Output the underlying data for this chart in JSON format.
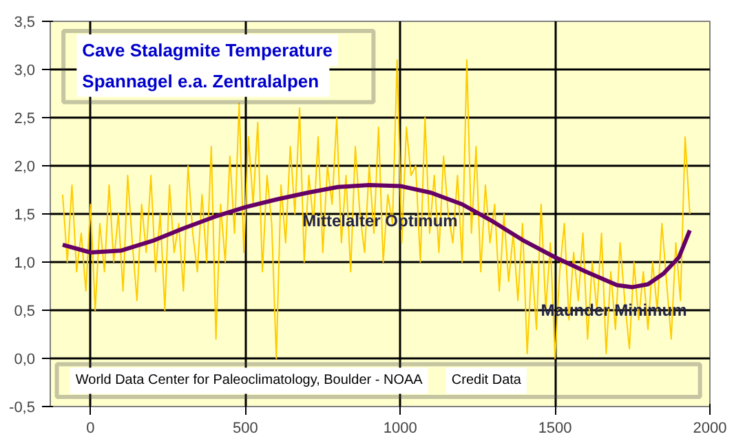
{
  "chart_data": {
    "type": "line",
    "title": "Cave Stalagmite Temperature",
    "subtitle": "Spannagel e.a.  Zentralalpen",
    "annotations": [
      {
        "text": "Mittelalter Optimum",
        "x": 935,
        "y": 1.43
      },
      {
        "text": "Maunder Minimum",
        "x": 1690,
        "y": 0.5
      },
      "World Data Center for Paleoclimatology, Boulder - NOAA",
      "Credit Data"
    ],
    "series": [
      {
        "color": "#ffcc00",
        "x": [
          -90,
          -75,
          -60,
          -45,
          -30,
          -15,
          0,
          15,
          30,
          45,
          60,
          75,
          90,
          105,
          120,
          135,
          150,
          165,
          180,
          195,
          210,
          225,
          240,
          255,
          270,
          285,
          300,
          315,
          330,
          345,
          360,
          375,
          390,
          405,
          420,
          435,
          450,
          465,
          480,
          495,
          510,
          525,
          540,
          555,
          570,
          585,
          600,
          615,
          630,
          645,
          660,
          675,
          690,
          705,
          720,
          735,
          750,
          765,
          780,
          795,
          810,
          825,
          840,
          855,
          870,
          885,
          900,
          915,
          930,
          945,
          960,
          975,
          990,
          1005,
          1020,
          1035,
          1050,
          1065,
          1080,
          1095,
          1110,
          1125,
          1140,
          1155,
          1170,
          1185,
          1200,
          1215,
          1230,
          1245,
          1260,
          1275,
          1290,
          1305,
          1320,
          1335,
          1350,
          1365,
          1380,
          1395,
          1410,
          1425,
          1440,
          1455,
          1470,
          1485,
          1500,
          1515,
          1530,
          1545,
          1560,
          1575,
          1590,
          1605,
          1620,
          1635,
          1650,
          1665,
          1680,
          1695,
          1710,
          1725,
          1740,
          1755,
          1770,
          1785,
          1800,
          1815,
          1830,
          1845,
          1860,
          1875,
          1890,
          1905,
          1920,
          1935
        ],
        "values": [
          1.7,
          1.0,
          1.8,
          0.9,
          1.3,
          0.7,
          1.6,
          0.5,
          1.4,
          0.9,
          1.8,
          1.0,
          1.5,
          0.7,
          1.9,
          1.2,
          0.6,
          1.6,
          1.1,
          1.9,
          0.9,
          1.5,
          0.5,
          1.8,
          1.1,
          1.4,
          0.7,
          2.0,
          1.3,
          0.9,
          1.7,
          1.0,
          2.2,
          0.2,
          1.6,
          1.0,
          2.1,
          1.3,
          2.65,
          1.1,
          2.3,
          1.6,
          2.45,
          0.9,
          1.9,
          1.4,
          0.0,
          1.8,
          1.2,
          2.2,
          1.5,
          2.6,
          1.0,
          1.9,
          1.4,
          2.3,
          1.1,
          2.0,
          1.6,
          2.5,
          1.2,
          1.9,
          0.9,
          2.2,
          1.5,
          1.1,
          2.0,
          1.3,
          2.4,
          1.0,
          1.7,
          1.4,
          3.1,
          1.2,
          2.4,
          1.9,
          2.0,
          1.0,
          2.5,
          1.3,
          1.9,
          1.1,
          2.1,
          1.5,
          1.2,
          1.9,
          1.0,
          3.1,
          1.3,
          2.2,
          0.9,
          1.8,
          1.2,
          1.6,
          0.7,
          1.5,
          0.8,
          1.3,
          0.6,
          1.4,
          0.05,
          1.0,
          0.3,
          1.6,
          0.5,
          1.2,
          0.0,
          0.9,
          1.4,
          0.4,
          1.1,
          0.6,
          1.3,
          0.2,
          1.0,
          0.5,
          1.3,
          0.05,
          0.9,
          0.3,
          1.2,
          0.6,
          0.1,
          1.0,
          0.4,
          0.9,
          0.3,
          1.0,
          0.5,
          1.4,
          0.8,
          0.2,
          1.2,
          0.6,
          2.3,
          1.5
        ]
      },
      {
        "color": "#660066",
        "x": [
          -90,
          0,
          100,
          200,
          300,
          400,
          500,
          600,
          700,
          800,
          900,
          1000,
          1100,
          1200,
          1300,
          1400,
          1500,
          1600,
          1700,
          1750,
          1800,
          1850,
          1900,
          1935
        ],
        "values": [
          1.18,
          1.1,
          1.12,
          1.22,
          1.35,
          1.47,
          1.57,
          1.65,
          1.72,
          1.78,
          1.8,
          1.79,
          1.72,
          1.6,
          1.42,
          1.22,
          1.05,
          0.9,
          0.76,
          0.74,
          0.77,
          0.88,
          1.05,
          1.33
        ]
      }
    ],
    "xlim": [
      -130,
      2000
    ],
    "ylim": [
      -0.5,
      3.5
    ],
    "xticks": [
      0,
      500,
      1000,
      1500,
      2000
    ],
    "yticks": [
      {
        "value": -0.5,
        "label": "-0,5"
      },
      {
        "value": 0,
        "label": "0,0"
      },
      {
        "value": 0.5,
        "label": "0,5"
      },
      {
        "value": 1,
        "label": "1,0"
      },
      {
        "value": 1.5,
        "label": "1,5"
      },
      {
        "value": 2,
        "label": "2,0"
      },
      {
        "value": 2.5,
        "label": "2,5"
      },
      {
        "value": 3,
        "label": "3,0"
      },
      {
        "value": 3.5,
        "label": "3,5"
      }
    ],
    "grid": true
  }
}
